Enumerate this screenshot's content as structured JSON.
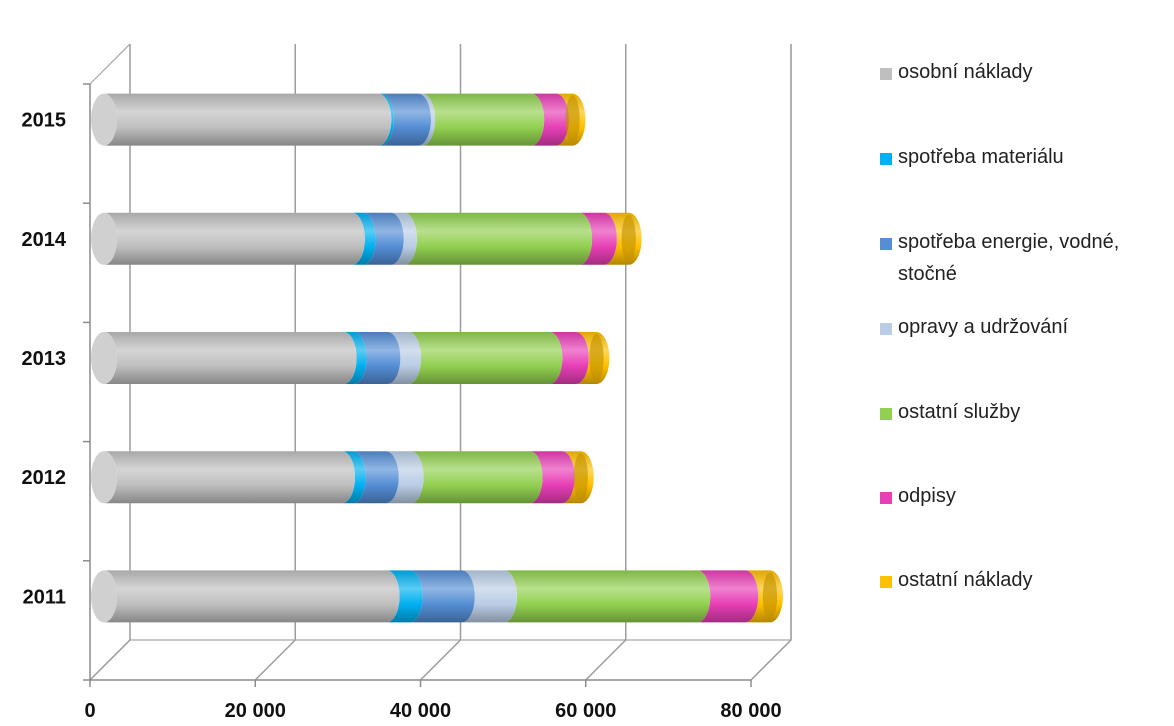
{
  "chart_data": {
    "type": "bar",
    "orientation": "horizontal",
    "stacked": true,
    "style": "3d-cylinder",
    "categories": [
      "2015",
      "2014",
      "2013",
      "2012",
      "2011"
    ],
    "series": [
      {
        "name": "osobní náklady",
        "color": "#bfbfbf",
        "values": [
          33200,
          30000,
          29000,
          28800,
          34200
        ]
      },
      {
        "name": "spotřeba materiálu",
        "color": "#00b0f0",
        "values": [
          300,
          1300,
          1200,
          1300,
          2800
        ]
      },
      {
        "name": "spotřeba energie, vodné, stočné",
        "color": "#558ed5",
        "values": [
          4500,
          3400,
          4100,
          4000,
          6300
        ]
      },
      {
        "name": "opravy a udržování",
        "color": "#b9cde5",
        "values": [
          500,
          1600,
          2500,
          3000,
          5100
        ]
      },
      {
        "name": "ostatní služby",
        "color": "#92d050",
        "values": [
          13200,
          21200,
          17100,
          14400,
          23400
        ]
      },
      {
        "name": "odpisy",
        "color": "#e83fb6",
        "values": [
          3000,
          3000,
          3200,
          3900,
          5800
        ]
      },
      {
        "name": "ostatní náklady",
        "color": "#ffc000",
        "values": [
          2000,
          3000,
          2500,
          2300,
          3000
        ]
      }
    ],
    "xlim": [
      0,
      80000
    ],
    "x_ticks": [
      "0",
      "20 000",
      "40 000",
      "60 000",
      "80 000"
    ],
    "xlabel": "",
    "ylabel": "",
    "title": "",
    "grid": true,
    "legend_position": "right"
  }
}
